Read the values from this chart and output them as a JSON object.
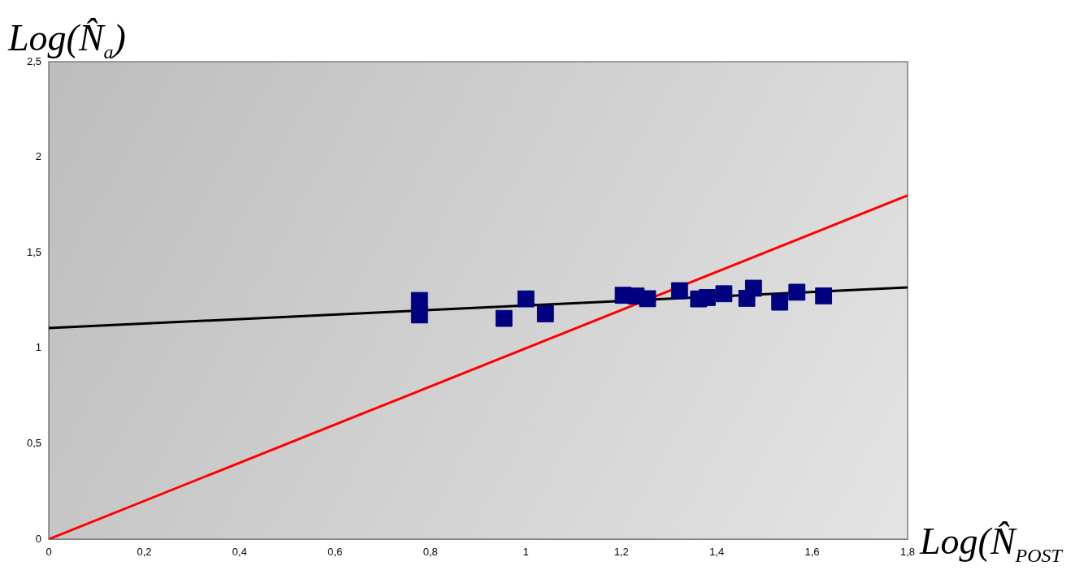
{
  "chart_data": {
    "type": "scatter",
    "xlabel": "Log(N̂$_{POST}$",
    "ylabel": "Log(N̂$_{a}$)",
    "xlim": [
      0,
      1.8
    ],
    "xticks": [
      0,
      {
        "value": 0.2,
        "label": "0,2"
      },
      {
        "value": 0.4,
        "label": "0,4"
      },
      {
        "value": 0.6,
        "label": "0,6"
      },
      {
        "value": 0.8,
        "label": "0,8"
      },
      1,
      {
        "value": 1.2,
        "label": "1,2"
      },
      {
        "value": 1.4,
        "label": "1,4"
      },
      {
        "value": 1.6,
        "label": "1,6"
      },
      {
        "value": 1.8,
        "label": "1,8"
      }
    ],
    "ylim": [
      0,
      2.5
    ],
    "yticks": [
      0,
      {
        "value": 0.5,
        "label": "0,5"
      },
      1,
      {
        "value": 1.5,
        "label": "1,5"
      },
      2,
      {
        "value": 2.5,
        "label": "2,5"
      }
    ],
    "grid": false,
    "legend": false,
    "marker": "square",
    "series": [
      {
        "color": "#000080",
        "x": [
          0.777,
          0.777,
          0.954,
          1.0,
          1.041,
          1.204,
          1.231,
          1.255,
          1.322,
          1.362,
          1.38,
          1.415,
          1.463,
          1.477,
          1.532,
          1.568,
          1.624
        ],
        "values": [
          1.25,
          1.174,
          1.156,
          1.258,
          1.18,
          1.277,
          1.273,
          1.259,
          1.301,
          1.258,
          1.265,
          1.285,
          1.261,
          1.314,
          1.241,
          1.293,
          1.274
        ]
      },
      {
        "type": "line",
        "color": "#000000",
        "marker": "none",
        "x": [
          0,
          1.8
        ],
        "values": [
          1.105,
          1.318
        ]
      },
      {
        "type": "line",
        "color": "#ff0000",
        "marker": "none",
        "x": [
          0,
          1.8
        ],
        "values": [
          0,
          1.8
        ]
      }
    ]
  }
}
